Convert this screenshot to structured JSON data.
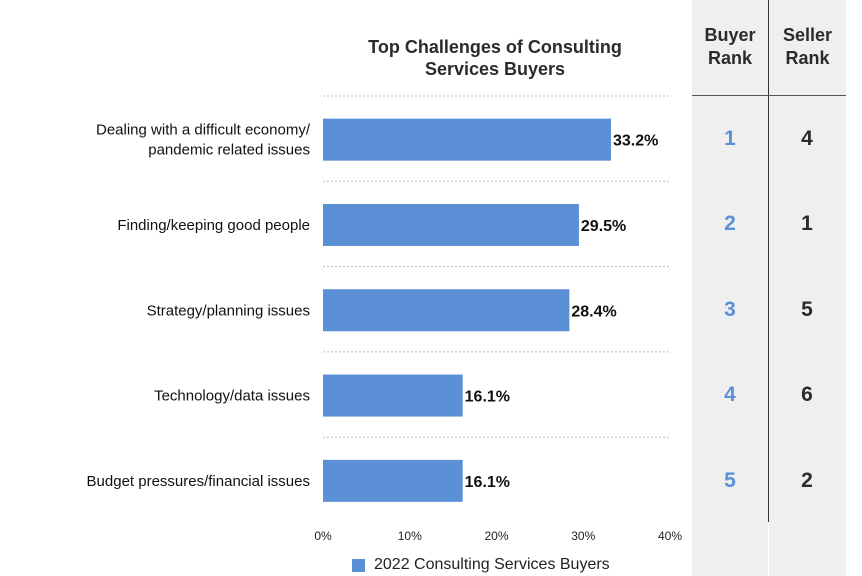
{
  "chart_data": {
    "type": "bar",
    "orientation": "horizontal",
    "title": "Top Challenges of Consulting Services Buyers",
    "title_lines": [
      "Top Challenges of Consulting",
      "Services Buyers"
    ],
    "categories": [
      "Dealing with a difficult economy/ pandemic related issues",
      "Finding/keeping good people",
      "Strategy/planning issues",
      "Technology/data issues",
      "Budget pressures/financial issues"
    ],
    "category_lines": [
      [
        "Dealing with a difficult economy/",
        "pandemic related issues"
      ],
      [
        "Finding/keeping good people"
      ],
      [
        "Strategy/planning issues"
      ],
      [
        "Technology/data issues"
      ],
      [
        "Budget pressures/financial issues"
      ]
    ],
    "series": [
      {
        "name": "2022 Consulting Services Buyers",
        "values": [
          33.2,
          29.5,
          28.4,
          16.1,
          16.1
        ],
        "labels": [
          "33.2%",
          "29.5%",
          "28.4%",
          "16.1%",
          "16.1%"
        ],
        "color": "#5b8fd6"
      }
    ],
    "xlim": [
      0,
      40
    ],
    "x_ticks": [
      0,
      10,
      20,
      30,
      40
    ],
    "x_tick_labels": [
      "0%",
      "10%",
      "20%",
      "30%",
      "40%"
    ],
    "grid": "dotted horizontal",
    "legend_position": "bottom"
  },
  "rank_table": {
    "buyer_header": [
      "Buyer",
      "Rank"
    ],
    "seller_header": [
      "Seller",
      "Rank"
    ],
    "buyer_ranks": [
      "1",
      "2",
      "3",
      "4",
      "5"
    ],
    "seller_ranks": [
      "4",
      "1",
      "5",
      "6",
      "2"
    ],
    "buyer_color": "#5b8fd6"
  },
  "legend": {
    "label": "2022 Consulting Services Buyers"
  }
}
